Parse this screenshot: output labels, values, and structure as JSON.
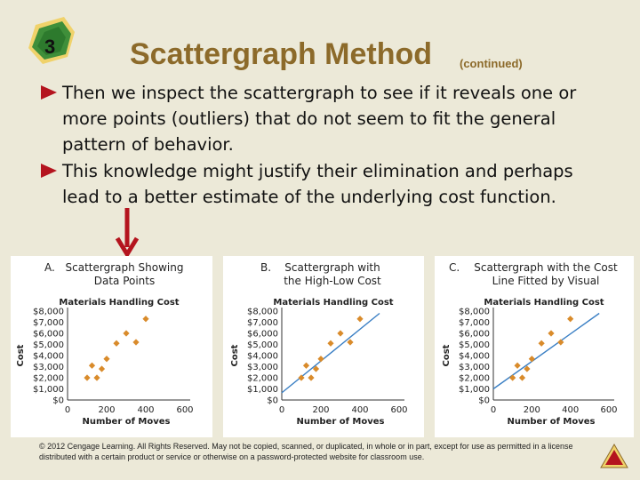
{
  "slide": {
    "number": "3",
    "title": "Scattergraph Method",
    "subtitle": "(continued)",
    "bullets": [
      "Then we inspect the scattergraph to see if it reveals one or more points (outliers) that do not seem to fit the general pattern of behavior.",
      "This knowledge might justify their elimination and perhaps lead to a better estimate of the underlying cost function."
    ],
    "copyright": "© 2012 Cengage Learning. All Rights Reserved. May not be copied, scanned, or duplicated, in whole or in part, except for use as permitted in a license distributed with a certain product or service or otherwise on a password-protected website for classroom use.",
    "colors": {
      "title": "#8c6a2a",
      "bullet_arrow": "#b4141e",
      "marker": "#d98b2b",
      "line": "#3a7fc4",
      "background": "#ece9d8"
    }
  },
  "chart_data": [
    {
      "type": "scatter",
      "panel_letter": "A.",
      "panel_title": "Scattergraph Showing Data Points",
      "title": "Materials Handling Cost",
      "xlabel": "Number of Moves",
      "ylabel": "Cost",
      "xlim": [
        0,
        600
      ],
      "ylim": [
        0,
        8000
      ],
      "x_ticks": [
        0,
        200,
        400,
        600
      ],
      "x_tick_labels": [
        "0",
        "200",
        "400",
        "600"
      ],
      "y_ticks": [
        0,
        1000,
        2000,
        3000,
        4000,
        5000,
        6000,
        7000,
        8000
      ],
      "y_tick_labels": [
        "$0",
        "$1,000",
        "$2,000",
        "$3,000",
        "$4,000",
        "$5,000",
        "$6,000",
        "$7,000",
        "$8,000"
      ],
      "points": [
        [
          100,
          2000
        ],
        [
          125,
          3100
        ],
        [
          150,
          2000
        ],
        [
          175,
          2800
        ],
        [
          200,
          3700
        ],
        [
          250,
          5100
        ],
        [
          300,
          6000
        ],
        [
          350,
          5200
        ],
        [
          400,
          7300
        ]
      ],
      "line": null
    },
    {
      "type": "scatter",
      "panel_letter": "B.",
      "panel_title": "Scattergraph with the High-Low Cost",
      "title": "Materials Handling Cost",
      "xlabel": "Number of Moves",
      "ylabel": "Cost",
      "xlim": [
        0,
        600
      ],
      "ylim": [
        0,
        8000
      ],
      "x_ticks": [
        0,
        200,
        400,
        600
      ],
      "x_tick_labels": [
        "0",
        "200",
        "400",
        "600"
      ],
      "y_ticks": [
        0,
        1000,
        2000,
        3000,
        4000,
        5000,
        6000,
        7000,
        8000
      ],
      "y_tick_labels": [
        "$0",
        "$1,000",
        "$2,000",
        "$3,000",
        "$4,000",
        "$5,000",
        "$6,000",
        "$7,000",
        "$8,000"
      ],
      "points": [
        [
          100,
          2000
        ],
        [
          125,
          3100
        ],
        [
          150,
          2000
        ],
        [
          175,
          2800
        ],
        [
          200,
          3700
        ],
        [
          250,
          5100
        ],
        [
          300,
          6000
        ],
        [
          350,
          5200
        ],
        [
          400,
          7300
        ]
      ],
      "line": [
        [
          0,
          650
        ],
        [
          500,
          7800
        ]
      ]
    },
    {
      "type": "scatter",
      "panel_letter": "C.",
      "panel_title": "Scattergraph with the Cost Line Fitted by Visual",
      "title": "Materials Handling Cost",
      "xlabel": "Number of Moves",
      "ylabel": "Cost",
      "xlim": [
        0,
        600
      ],
      "ylim": [
        0,
        8000
      ],
      "x_ticks": [
        0,
        200,
        400,
        600
      ],
      "x_tick_labels": [
        "0",
        "200",
        "400",
        "600"
      ],
      "y_ticks": [
        0,
        1000,
        2000,
        3000,
        4000,
        5000,
        6000,
        7000,
        8000
      ],
      "y_tick_labels": [
        "$0",
        "$1,000",
        "$2,000",
        "$3,000",
        "$4,000",
        "$5,000",
        "$6,000",
        "$7,000",
        "$8,000"
      ],
      "points": [
        [
          100,
          2000
        ],
        [
          125,
          3100
        ],
        [
          150,
          2000
        ],
        [
          175,
          2800
        ],
        [
          200,
          3700
        ],
        [
          250,
          5100
        ],
        [
          300,
          6000
        ],
        [
          350,
          5200
        ],
        [
          400,
          7300
        ]
      ],
      "line": [
        [
          0,
          1000
        ],
        [
          550,
          7800
        ]
      ]
    }
  ]
}
